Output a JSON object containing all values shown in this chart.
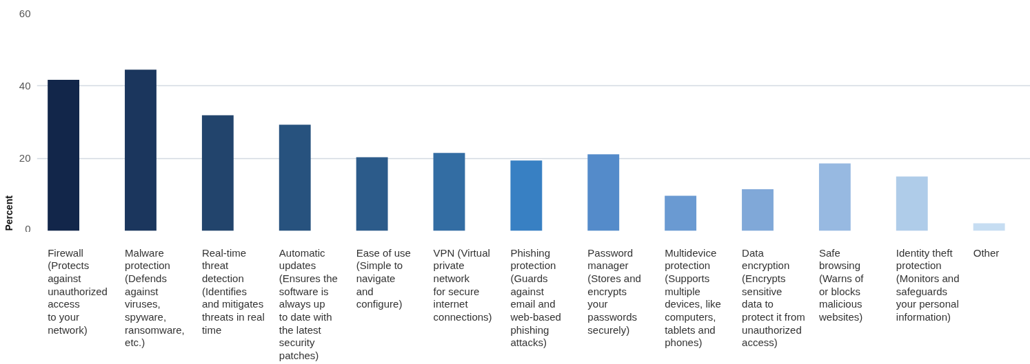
{
  "chart_data": {
    "type": "bar",
    "ylabel": "Percent",
    "categories": [
      "Firewall\n(Protects\nagainst\nunauthorized\naccess\nto your\nnetwork)",
      "Malware\nprotection\n(Defends\nagainst\nviruses,\nspyware,\nransomware,\netc.)",
      "Real-time\nthreat\ndetection\n(Identifies\nand mitigates\nthreats in real\ntime",
      "Automatic\nupdates\n(Ensures the\nsoftware is\nalways up\nto date with\nthe latest\nsecurity\npatches)",
      "Ease of use\n(Simple to\nnavigate\nand\nconfigure)",
      "VPN (Virtual\nprivate\nnetwork\nfor secure\ninternet\nconnections)",
      "Phishing\nprotection\n(Guards\nagainst\nemail and\nweb-based\nphishing\nattacks)",
      "Password\nmanager\n(Stores and\nencrypts\nyour\npasswords\nsecurely)",
      "Multidevice\nprotection\n(Supports\nmultiple\ndevices, like\ncomputers,\ntablets and\nphones)",
      "Data\nencryption\n(Encrypts\nsensitive\ndata to\nprotect it from\nunauthorized\naccess)",
      "Safe\nbrowsing\n(Warns of\nor blocks\nmalicious\nwebsites)",
      "Identity theft\nprotection\n(Monitors and\nsafeguards\nyour personal\ninformation)",
      "Other"
    ],
    "values": [
      41.7,
      44.5,
      31.9,
      29.3,
      20.3,
      21.5,
      19.4,
      21.1,
      9.7,
      11.5,
      18.6,
      15.0,
      2.1
    ],
    "colors": [
      "#12264a",
      "#1b365d",
      "#22446c",
      "#27527e",
      "#2c5b8a",
      "#336da3",
      "#3880c3",
      "#548bca",
      "#6a9ad2",
      "#80a8d8",
      "#97b9e1",
      "#afcce9",
      "#c6ddf2"
    ],
    "ylim": [
      0,
      60
    ],
    "yticks": [
      0,
      20,
      40,
      60
    ],
    "grid": "y"
  }
}
